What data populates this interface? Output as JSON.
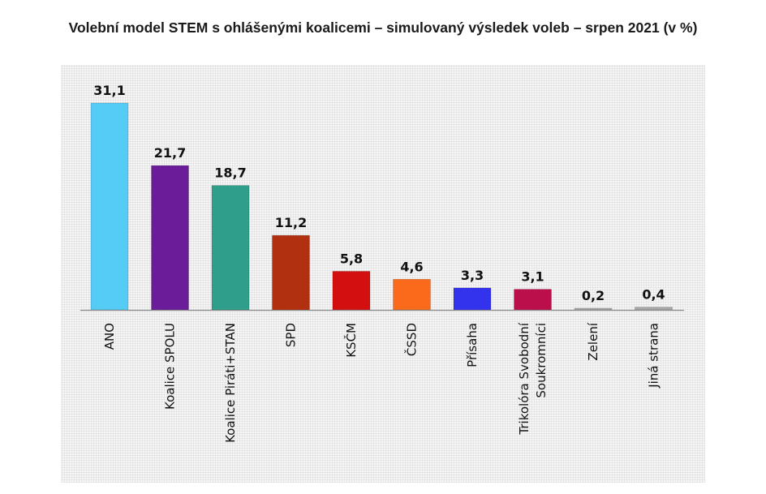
{
  "title": "Volební model STEM s ohlášenými koalicemi – simulovaný výsledek voleb – srpen 2021 (v %)",
  "chart_data": {
    "type": "bar",
    "title": "Volební model STEM s ohlášenými koalicemi – simulovaný výsledek voleb – srpen 2021 (v %)",
    "xlabel": "",
    "ylabel": "",
    "ylim": [
      0,
      31.1
    ],
    "grid": false,
    "legend": "none",
    "categories": [
      [
        "ANO"
      ],
      [
        "Koalice SPOLU"
      ],
      [
        "Koalice Piráti+STAN"
      ],
      [
        "SPD"
      ],
      [
        "KSČM"
      ],
      [
        "ČSSD"
      ],
      [
        "Přísaha"
      ],
      [
        "Trikolóra Svobodní",
        "Soukromníci"
      ],
      [
        "Zelení"
      ],
      [
        "Jiná strana"
      ]
    ],
    "values": [
      31.1,
      21.7,
      18.7,
      11.2,
      5.8,
      4.6,
      3.3,
      3.1,
      0.2,
      0.4
    ],
    "value_labels": [
      "31,1",
      "21,7",
      "18,7",
      "11,2",
      "5,8",
      "4,6",
      "3,3",
      "3,1",
      "0,2",
      "0,4"
    ],
    "colors": [
      "#55ccf5",
      "#6a1c99",
      "#2f9e8b",
      "#b0300f",
      "#d40f0f",
      "#fb6a1a",
      "#3333ee",
      "#bb0f4c",
      "#a8a8a8",
      "#a8a8a8"
    ]
  }
}
